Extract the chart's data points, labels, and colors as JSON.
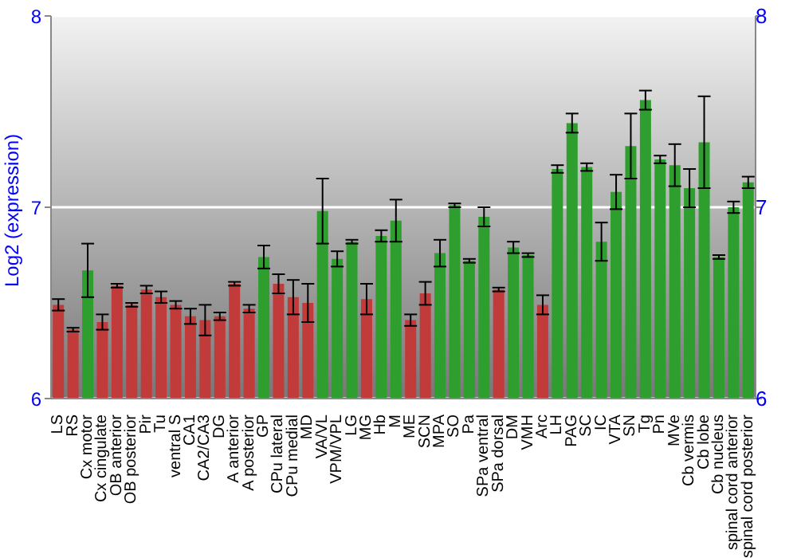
{
  "chart_data": {
    "type": "bar",
    "ylabel": "Log2 (expression)",
    "categories": [
      "LS",
      "RS",
      "Cx motor",
      "Cx cingulate",
      "OB anterior",
      "OB posterior",
      "Pir",
      "Tu",
      "ventral S",
      "CA1",
      "CA2/CA3",
      "DG",
      "A anterior",
      "A posterior",
      "GP",
      "CPu lateral",
      "CPu medial",
      "MD",
      "VA/VL",
      "VPM/VPL",
      "LG",
      "MG",
      "Hb",
      "M",
      "ME",
      "SCN",
      "MPA",
      "SO",
      "Pa",
      "SPa ventral",
      "SPa dorsal",
      "DM",
      "VMH",
      "Arc",
      "LH",
      "PAG",
      "SC",
      "IC",
      "VTA",
      "SN",
      "Tg",
      "Pn",
      "MVe",
      "Cb vermis",
      "Cb lobe",
      "Cb nucleus",
      "spinal cord anterior",
      "spinal cord posterior"
    ],
    "values": [
      6.49,
      6.36,
      6.67,
      6.4,
      6.59,
      6.49,
      6.57,
      6.53,
      6.49,
      6.43,
      6.41,
      6.43,
      6.6,
      6.47,
      6.74,
      6.6,
      6.53,
      6.5,
      6.98,
      6.73,
      6.82,
      6.52,
      6.85,
      6.93,
      6.41,
      6.55,
      6.76,
      7.01,
      6.72,
      6.95,
      6.57,
      6.79,
      6.75,
      6.49,
      7.2,
      7.44,
      7.21,
      6.82,
      7.08,
      7.32,
      7.56,
      7.25,
      7.22,
      7.1,
      7.34,
      6.74,
      7.0,
      7.13
    ],
    "errors": [
      0.03,
      0.01,
      0.14,
      0.04,
      0.01,
      0.01,
      0.02,
      0.03,
      0.02,
      0.04,
      0.08,
      0.02,
      0.01,
      0.02,
      0.06,
      0.05,
      0.09,
      0.1,
      0.17,
      0.04,
      0.01,
      0.08,
      0.03,
      0.11,
      0.03,
      0.06,
      0.07,
      0.01,
      0.01,
      0.05,
      0.01,
      0.03,
      0.01,
      0.05,
      0.02,
      0.05,
      0.02,
      0.1,
      0.09,
      0.17,
      0.05,
      0.02,
      0.11,
      0.1,
      0.24,
      0.01,
      0.03,
      0.03
    ],
    "colors": [
      "#c23b3b",
      "#c23b3b",
      "#2e9e2e",
      "#c23b3b",
      "#c23b3b",
      "#c23b3b",
      "#c23b3b",
      "#c23b3b",
      "#c23b3b",
      "#c23b3b",
      "#c23b3b",
      "#c23b3b",
      "#c23b3b",
      "#c23b3b",
      "#2e9e2e",
      "#c23b3b",
      "#c23b3b",
      "#c23b3b",
      "#2e9e2e",
      "#2e9e2e",
      "#2e9e2e",
      "#c23b3b",
      "#2e9e2e",
      "#2e9e2e",
      "#c23b3b",
      "#c23b3b",
      "#2e9e2e",
      "#2e9e2e",
      "#2e9e2e",
      "#2e9e2e",
      "#c23b3b",
      "#2e9e2e",
      "#2e9e2e",
      "#c23b3b",
      "#2e9e2e",
      "#2e9e2e",
      "#2e9e2e",
      "#2e9e2e",
      "#2e9e2e",
      "#2e9e2e",
      "#2e9e2e",
      "#2e9e2e",
      "#2e9e2e",
      "#2e9e2e",
      "#2e9e2e",
      "#2e9e2e",
      "#2e9e2e",
      "#2e9e2e"
    ],
    "ylim": [
      6,
      8
    ],
    "yticks": [
      6,
      7,
      8
    ],
    "y2lim": [
      6,
      8
    ],
    "y2ticks": [
      6,
      7,
      8
    ],
    "grid": "y",
    "legend": false
  }
}
